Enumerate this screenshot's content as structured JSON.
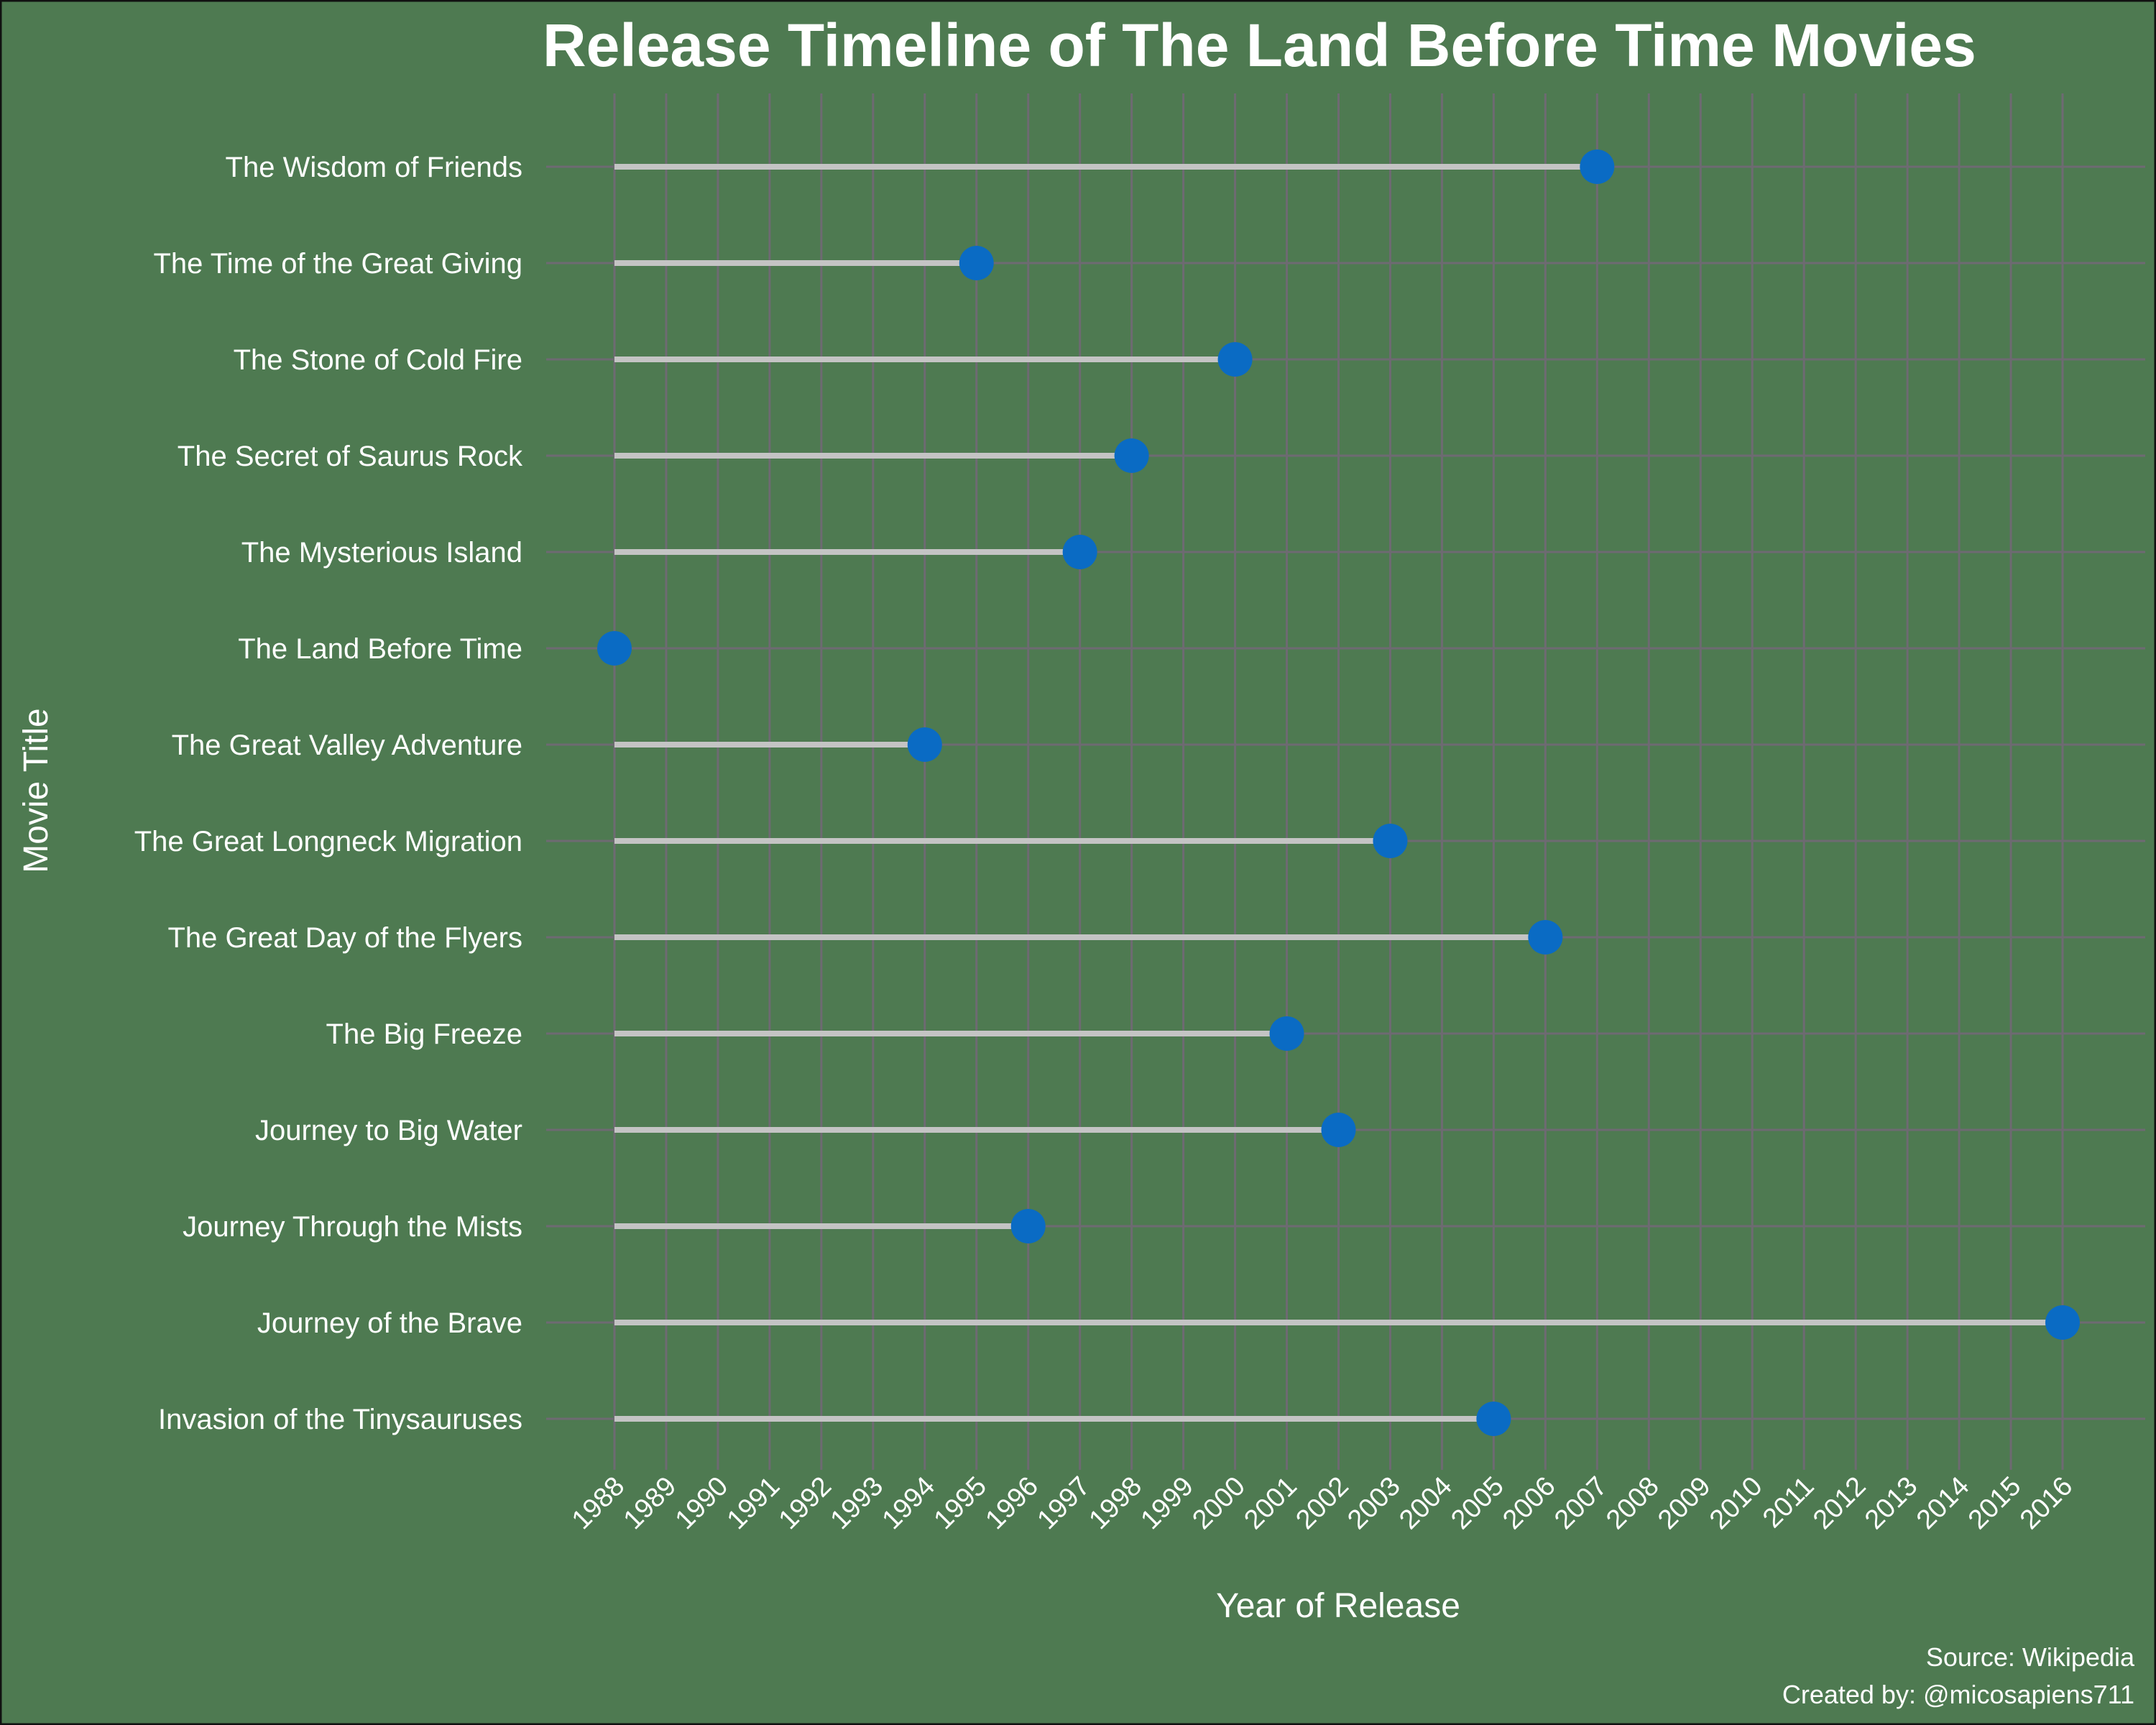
{
  "chart_data": {
    "type": "lollipop",
    "title": "Release Timeline of The Land Before Time Movies",
    "xlabel": "Year of Release",
    "ylabel": "Movie Title",
    "xlim": [
      1988,
      2016
    ],
    "x_ticks": [
      1988,
      1989,
      1990,
      1991,
      1992,
      1993,
      1994,
      1995,
      1996,
      1997,
      1998,
      1999,
      2000,
      2001,
      2002,
      2003,
      2004,
      2005,
      2006,
      2007,
      2008,
      2009,
      2010,
      2011,
      2012,
      2013,
      2014,
      2015,
      2016
    ],
    "baseline": 1988,
    "grid": true,
    "points": [
      {
        "title": "The Wisdom of Friends",
        "year": 2007
      },
      {
        "title": "The Time of the Great Giving",
        "year": 1995
      },
      {
        "title": "The Stone of Cold Fire",
        "year": 2000
      },
      {
        "title": "The Secret of Saurus Rock",
        "year": 1998
      },
      {
        "title": "The Mysterious Island",
        "year": 1997
      },
      {
        "title": "The Land Before Time",
        "year": 1988
      },
      {
        "title": "The Great Valley Adventure",
        "year": 1994
      },
      {
        "title": "The Great Longneck Migration",
        "year": 2003
      },
      {
        "title": "The Great Day of the Flyers",
        "year": 2006
      },
      {
        "title": "The Big Freeze",
        "year": 2001
      },
      {
        "title": "Journey to Big Water",
        "year": 2002
      },
      {
        "title": "Journey Through the Mists",
        "year": 1996
      },
      {
        "title": "Journey of the Brave",
        "year": 2016
      },
      {
        "title": "Invasion of the Tinysauruses",
        "year": 2005
      }
    ],
    "colors": {
      "background": "#4e7a51",
      "grid": "#6e6a72",
      "stem": "#c4c4c4",
      "point": "#0a6bc4",
      "text": "#ffffff",
      "border": "#111111"
    }
  },
  "caption": {
    "source": "Source: Wikipedia",
    "credit": "Created by: @micosapiens711"
  }
}
